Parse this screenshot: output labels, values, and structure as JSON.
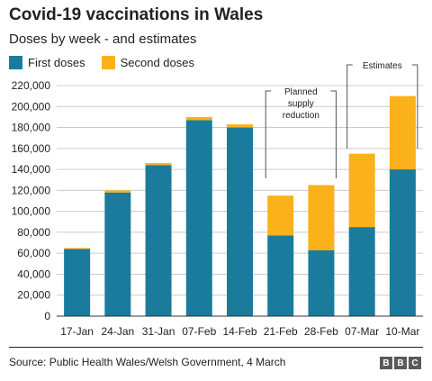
{
  "title": "Covid-19 vaccinations in Wales",
  "subtitle": "Doses by week - and estimates",
  "source": "Source: Public Health Wales/Welsh Government, 4 March",
  "logo_letters": [
    "B",
    "B",
    "C"
  ],
  "colors": {
    "first": "#1a7b9c",
    "second": "#fbb11a",
    "text": "#222222",
    "grid": "#cccccc"
  },
  "chart_data": {
    "type": "bar",
    "stacked": true,
    "categories": [
      "17-Jan",
      "24-Jan",
      "31-Jan",
      "07-Feb",
      "14-Feb",
      "21-Feb",
      "28-Feb",
      "07-Mar",
      "10-Mar"
    ],
    "series": [
      {
        "name": "First doses",
        "values": [
          64000,
          118000,
          144000,
          187000,
          180000,
          77000,
          63000,
          85000,
          140000
        ]
      },
      {
        "name": "Second doses",
        "values": [
          1000,
          2000,
          2000,
          3000,
          3000,
          38000,
          62000,
          70000,
          70000
        ]
      }
    ],
    "ylim": [
      0,
      220000
    ],
    "yticks": [
      0,
      20000,
      40000,
      60000,
      80000,
      100000,
      120000,
      140000,
      160000,
      180000,
      200000,
      220000
    ],
    "ytick_labels": [
      "0",
      "20,000",
      "40,000",
      "60,000",
      "80,000",
      "100,000",
      "120,000",
      "140,000",
      "160,000",
      "180,000",
      "200,000",
      "220,000"
    ],
    "grid": true,
    "legend": "top-left",
    "annotations": [
      {
        "text": [
          "Planned",
          "supply",
          "reduction"
        ],
        "from": "21-Feb",
        "to": "28-Feb"
      },
      {
        "text": [
          "Estimates"
        ],
        "from": "07-Mar",
        "to": "10-Mar"
      }
    ]
  }
}
